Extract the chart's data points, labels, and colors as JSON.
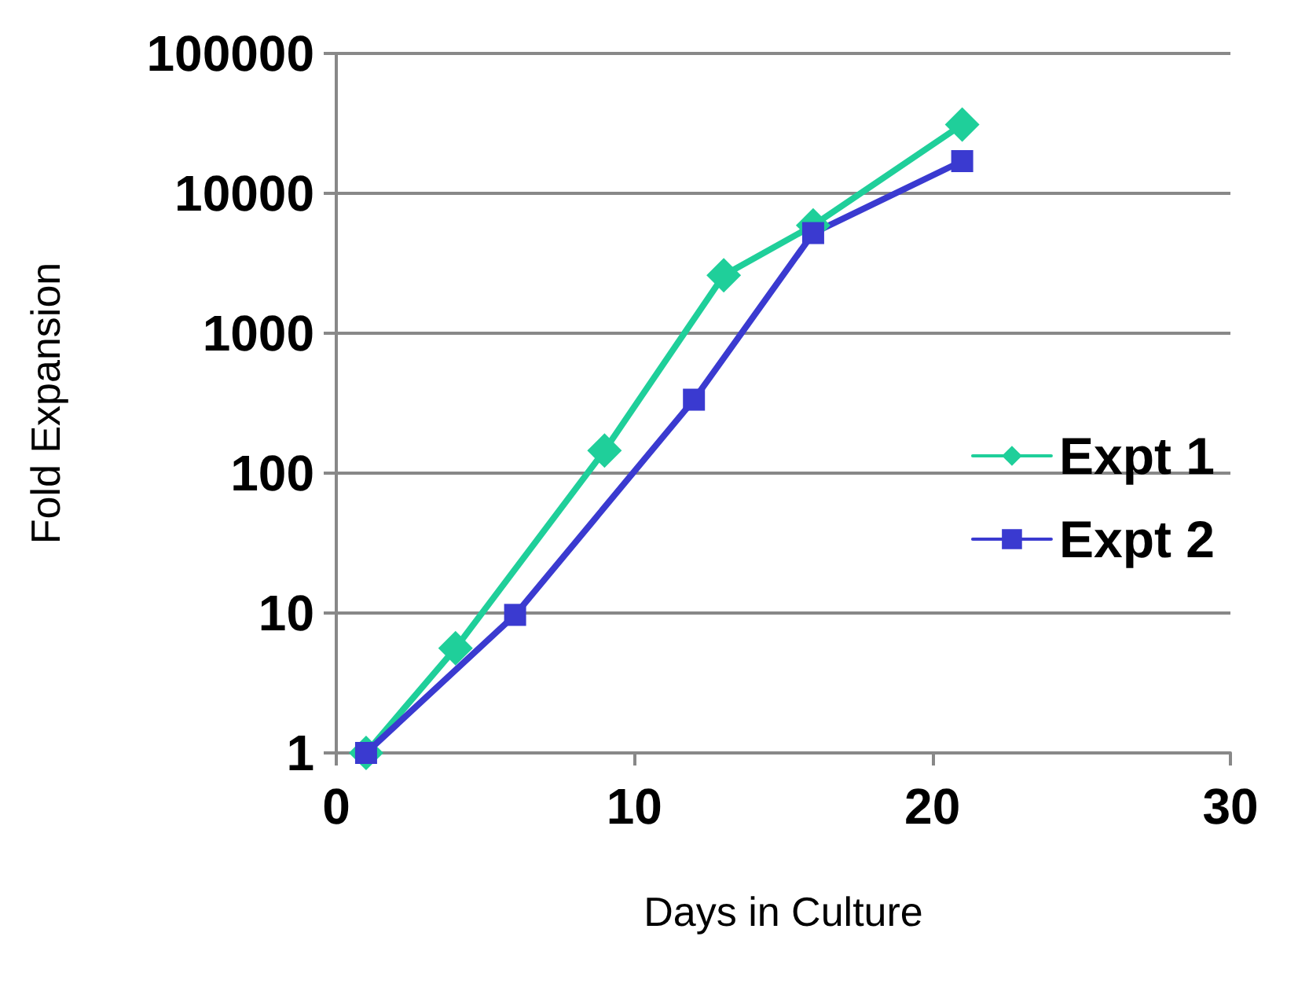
{
  "chart_data": {
    "type": "line",
    "xlabel": "Days in Culture",
    "ylabel": "Fold Expansion",
    "log": "y",
    "xlim": [
      0,
      30
    ],
    "xticks": [
      0,
      10,
      20,
      30
    ],
    "ylim": [
      1,
      100000
    ],
    "yticks": [
      1,
      10,
      100,
      1000,
      10000,
      100000
    ],
    "grid": "y",
    "legend": "right",
    "line_style": "solid",
    "series": [
      {
        "name": "Expt 1",
        "color": "#1fcf9a",
        "marker": "diamond",
        "x": [
          1,
          4,
          9,
          13,
          16,
          21
        ],
        "values": [
          1,
          5.6,
          145,
          2600,
          5900,
          31000
        ]
      },
      {
        "name": "Expt 2",
        "color": "#3a3ad0",
        "marker": "square",
        "x": [
          1,
          6,
          12,
          16,
          21
        ],
        "values": [
          1,
          9.7,
          335,
          5200,
          17000
        ]
      }
    ]
  }
}
